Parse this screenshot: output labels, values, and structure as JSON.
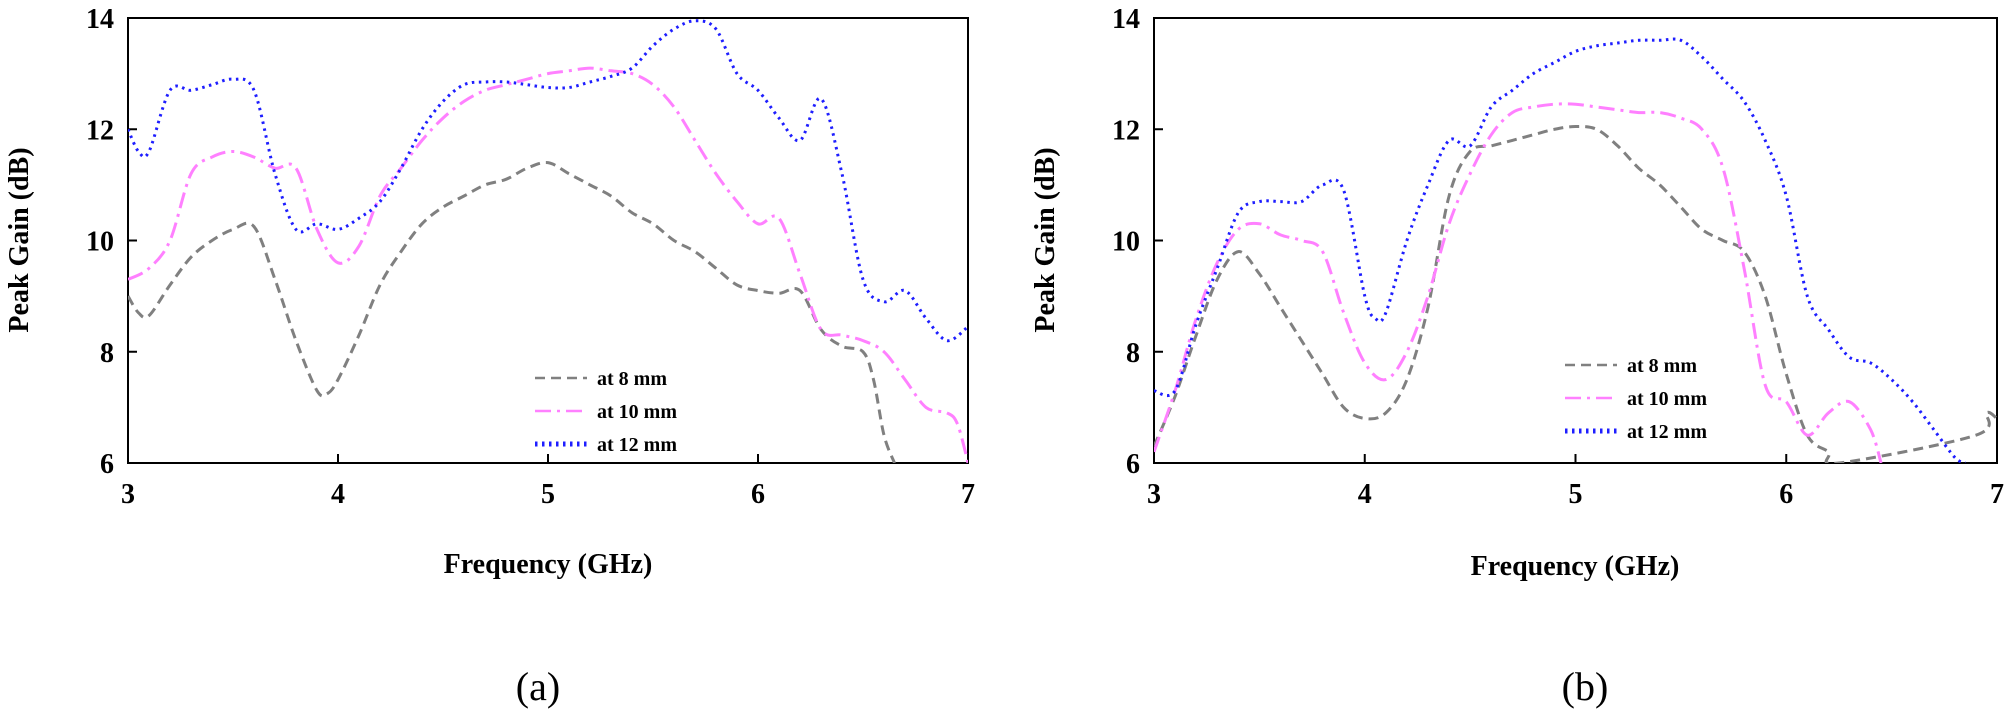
{
  "chart_data": [
    {
      "type": "line",
      "panel_label": "(a)",
      "xlabel": "Frequency (GHz)",
      "ylabel": "Peak Gain (dB)",
      "xlim": [
        3,
        7
      ],
      "ylim": [
        6,
        14
      ],
      "xticks": [
        3,
        4,
        5,
        6,
        7
      ],
      "yticks": [
        6,
        8,
        10,
        12,
        14
      ],
      "legend_position": "bottom-right",
      "series": [
        {
          "name": "at 8 mm",
          "color": "#808080",
          "dash": "dashed",
          "x": [
            3.0,
            3.05,
            3.1,
            3.2,
            3.3,
            3.4,
            3.5,
            3.6,
            3.7,
            3.8,
            3.9,
            3.95,
            4.0,
            4.1,
            4.2,
            4.3,
            4.4,
            4.5,
            4.6,
            4.7,
            4.8,
            4.9,
            5.0,
            5.1,
            5.2,
            5.3,
            5.4,
            5.5,
            5.6,
            5.7,
            5.8,
            5.9,
            6.0,
            6.1,
            6.2,
            6.3,
            6.4,
            6.5,
            6.55,
            6.6,
            6.65
          ],
          "y": [
            9.0,
            8.7,
            8.65,
            9.2,
            9.7,
            10.0,
            10.2,
            10.25,
            9.3,
            8.2,
            7.3,
            7.25,
            7.5,
            8.3,
            9.2,
            9.8,
            10.3,
            10.6,
            10.8,
            11.0,
            11.1,
            11.3,
            11.4,
            11.2,
            11.0,
            10.8,
            10.5,
            10.3,
            10.0,
            9.8,
            9.5,
            9.2,
            9.1,
            9.05,
            9.1,
            8.4,
            8.1,
            8.0,
            7.5,
            6.5,
            6.0
          ]
        },
        {
          "name": "at 10 mm",
          "color": "#FF80FF",
          "dash": "dashdot",
          "x": [
            3.0,
            3.1,
            3.2,
            3.3,
            3.4,
            3.5,
            3.6,
            3.7,
            3.8,
            3.9,
            4.0,
            4.1,
            4.2,
            4.3,
            4.4,
            4.5,
            4.6,
            4.7,
            4.8,
            4.9,
            5.0,
            5.1,
            5.2,
            5.3,
            5.4,
            5.5,
            5.6,
            5.7,
            5.8,
            5.9,
            6.0,
            6.1,
            6.2,
            6.3,
            6.4,
            6.5,
            6.6,
            6.7,
            6.8,
            6.9,
            6.95,
            7.0
          ],
          "y": [
            9.3,
            9.5,
            10.0,
            11.2,
            11.5,
            11.6,
            11.5,
            11.3,
            11.3,
            10.2,
            9.6,
            9.9,
            10.8,
            11.3,
            11.8,
            12.2,
            12.5,
            12.7,
            12.8,
            12.9,
            13.0,
            13.05,
            13.1,
            13.05,
            13.0,
            12.8,
            12.4,
            11.8,
            11.2,
            10.7,
            10.3,
            10.4,
            9.4,
            8.4,
            8.3,
            8.2,
            8.0,
            7.5,
            7.0,
            6.9,
            6.7,
            6.0
          ]
        },
        {
          "name": "at 12 mm",
          "color": "#1E1EFF",
          "dash": "dotted",
          "x": [
            3.0,
            3.05,
            3.1,
            3.2,
            3.3,
            3.4,
            3.5,
            3.6,
            3.7,
            3.8,
            3.9,
            4.0,
            4.1,
            4.2,
            4.3,
            4.4,
            4.5,
            4.6,
            4.7,
            4.8,
            4.9,
            5.0,
            5.1,
            5.2,
            5.3,
            5.4,
            5.5,
            5.6,
            5.7,
            5.8,
            5.9,
            6.0,
            6.1,
            6.2,
            6.3,
            6.4,
            6.5,
            6.6,
            6.7,
            6.8,
            6.9,
            7.0
          ],
          "y": [
            12.0,
            11.6,
            11.6,
            12.7,
            12.7,
            12.8,
            12.9,
            12.7,
            11.2,
            10.2,
            10.3,
            10.2,
            10.4,
            10.7,
            11.3,
            12.0,
            12.5,
            12.8,
            12.85,
            12.85,
            12.8,
            12.75,
            12.75,
            12.85,
            12.95,
            13.1,
            13.5,
            13.8,
            13.95,
            13.8,
            13.0,
            12.7,
            12.2,
            11.8,
            12.55,
            11.2,
            9.3,
            8.9,
            9.1,
            8.6,
            8.2,
            8.45
          ]
        }
      ]
    },
    {
      "type": "line",
      "panel_label": "(b)",
      "xlabel": "Frequency (GHz)",
      "ylabel": "Peak Gain (dB)",
      "xlim": [
        3,
        7
      ],
      "ylim": [
        6,
        14
      ],
      "xticks": [
        3,
        4,
        5,
        6,
        7
      ],
      "yticks": [
        6,
        8,
        10,
        12,
        14
      ],
      "legend_position": "bottom-right",
      "series": [
        {
          "name": "at 8 mm",
          "color": "#808080",
          "dash": "dashed",
          "x": [
            3.0,
            3.1,
            3.2,
            3.3,
            3.4,
            3.5,
            3.6,
            3.7,
            3.8,
            3.9,
            4.0,
            4.1,
            4.2,
            4.3,
            4.4,
            4.5,
            4.6,
            4.7,
            4.8,
            4.9,
            5.0,
            5.1,
            5.2,
            5.3,
            5.4,
            5.5,
            5.6,
            5.7,
            5.8,
            5.9,
            6.0,
            6.1,
            6.2,
            6.25,
            6.9,
            6.95,
            7.0
          ],
          "y": [
            6.3,
            7.2,
            8.3,
            9.3,
            9.8,
            9.4,
            8.8,
            8.2,
            7.6,
            7.0,
            6.8,
            6.9,
            7.5,
            8.8,
            10.8,
            11.6,
            11.7,
            11.8,
            11.9,
            12.0,
            12.05,
            12.0,
            11.7,
            11.3,
            11.0,
            10.6,
            10.2,
            10.0,
            9.8,
            9.0,
            7.6,
            6.5,
            6.2,
            6.0,
            6.5,
            6.9,
            6.8
          ]
        },
        {
          "name": "at 10 mm",
          "color": "#FF80FF",
          "dash": "dashdot",
          "x": [
            3.0,
            3.1,
            3.2,
            3.3,
            3.4,
            3.5,
            3.6,
            3.7,
            3.8,
            3.9,
            4.0,
            4.1,
            4.2,
            4.3,
            4.4,
            4.5,
            4.6,
            4.7,
            4.8,
            4.9,
            5.0,
            5.1,
            5.2,
            5.3,
            5.4,
            5.5,
            5.6,
            5.7,
            5.8,
            5.9,
            6.0,
            6.1,
            6.2,
            6.3,
            6.4,
            6.45
          ],
          "y": [
            6.2,
            7.3,
            8.6,
            9.6,
            10.2,
            10.3,
            10.1,
            10.0,
            9.8,
            8.7,
            7.8,
            7.5,
            8.0,
            9.0,
            10.3,
            11.2,
            11.9,
            12.3,
            12.4,
            12.45,
            12.45,
            12.4,
            12.35,
            12.3,
            12.3,
            12.2,
            12.0,
            11.3,
            9.5,
            7.4,
            7.1,
            6.5,
            6.9,
            7.1,
            6.6,
            6.0
          ]
        },
        {
          "name": "at 12 mm",
          "color": "#1E1EFF",
          "dash": "dotted",
          "x": [
            3.0,
            3.1,
            3.2,
            3.3,
            3.4,
            3.5,
            3.6,
            3.7,
            3.8,
            3.9,
            4.0,
            4.05,
            4.1,
            4.2,
            4.3,
            4.4,
            4.5,
            4.6,
            4.7,
            4.8,
            4.9,
            5.0,
            5.1,
            5.2,
            5.3,
            5.4,
            5.5,
            5.6,
            5.7,
            5.8,
            5.9,
            6.0,
            6.1,
            6.2,
            6.3,
            6.4,
            6.5,
            6.6,
            6.7,
            6.8,
            6.85
          ],
          "y": [
            7.3,
            7.3,
            8.5,
            9.5,
            10.5,
            10.7,
            10.7,
            10.7,
            11.0,
            10.9,
            9.0,
            8.6,
            8.7,
            10.0,
            11.0,
            11.8,
            11.7,
            12.4,
            12.7,
            13.0,
            13.2,
            13.4,
            13.5,
            13.55,
            13.6,
            13.6,
            13.6,
            13.3,
            12.9,
            12.5,
            11.8,
            10.8,
            9.0,
            8.4,
            7.9,
            7.8,
            7.5,
            7.1,
            6.6,
            6.1,
            6.0
          ]
        }
      ]
    }
  ]
}
